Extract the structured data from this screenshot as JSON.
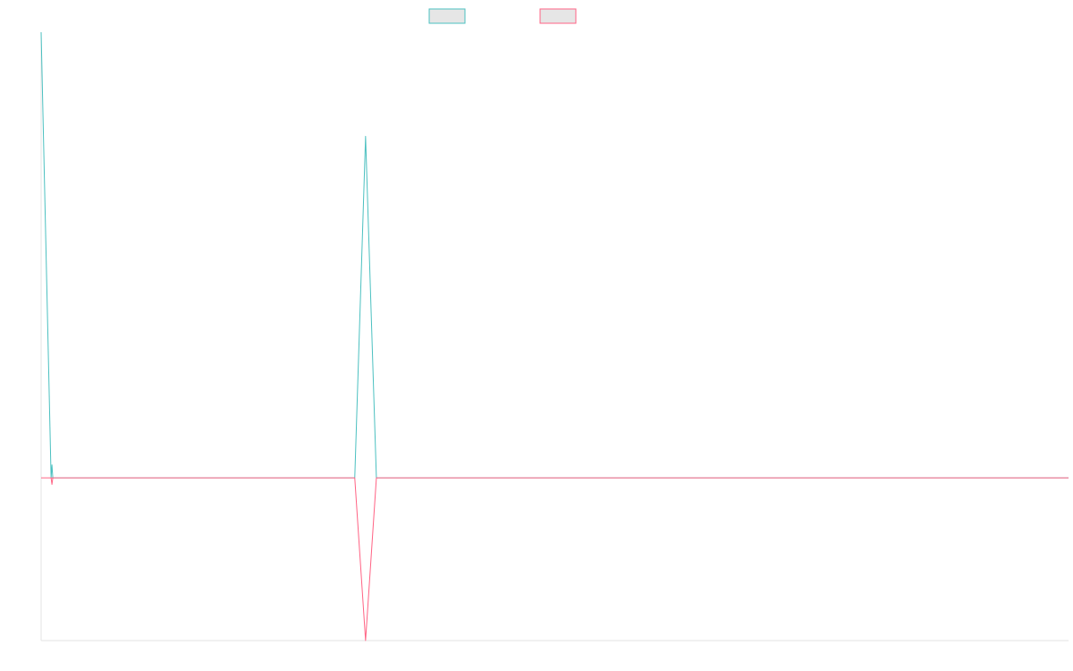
{
  "chart_data": {
    "type": "line",
    "title": "",
    "xlabel": "",
    "ylabel": "",
    "grid": false,
    "legend_position": "top-center",
    "xlim": [
      0,
      95
    ],
    "ylim": [
      -0.5,
      1.37
    ],
    "x": [
      0,
      1,
      2,
      3,
      4,
      5,
      6,
      7,
      8,
      9,
      10,
      11,
      12,
      13,
      14,
      15,
      16,
      17,
      18,
      19,
      20,
      21,
      22,
      23,
      24,
      25,
      26,
      27,
      28,
      29,
      30,
      31,
      32,
      33,
      34,
      35,
      36,
      37,
      38,
      39,
      40,
      41,
      42,
      43,
      44,
      45,
      46,
      47,
      48,
      49,
      50,
      51,
      52,
      53,
      54,
      55,
      56,
      57,
      58,
      59,
      60,
      61,
      62,
      63,
      64,
      65,
      66,
      67,
      68,
      69,
      70,
      71,
      72,
      73,
      74,
      75,
      76,
      77,
      78,
      79,
      80,
      81,
      82,
      83,
      84,
      85,
      86,
      87,
      88,
      89,
      90,
      91,
      92,
      93,
      94,
      95
    ],
    "series": [
      {
        "name": "",
        "color": "#4bc0c0",
        "values": [
          1.37,
          0,
          0,
          0,
          0,
          0,
          0,
          0,
          0,
          0,
          0,
          0,
          0,
          0,
          0,
          0,
          0,
          0,
          0,
          0,
          0,
          0,
          0,
          0,
          0,
          0,
          0,
          0,
          0,
          0,
          1.05,
          0,
          0,
          0,
          0,
          0,
          0,
          0,
          0,
          0,
          0,
          0,
          0,
          0,
          0,
          0,
          0,
          0,
          0,
          0,
          0,
          0,
          0,
          0,
          0,
          0,
          0,
          0,
          0,
          0,
          0,
          0,
          0,
          0,
          0,
          0,
          0,
          0,
          0,
          0,
          0,
          0,
          0,
          0,
          0,
          0,
          0,
          0,
          0,
          0,
          0,
          0,
          0,
          0,
          0,
          0,
          0,
          0,
          0,
          0,
          0,
          0,
          0,
          0,
          0,
          0
        ],
        "spikes": [
          [
            1,
            0.04
          ]
        ]
      },
      {
        "name": "",
        "color": "#ff6384",
        "values": [
          0,
          0,
          0,
          0,
          0,
          0,
          0,
          0,
          0,
          0,
          0,
          0,
          0,
          0,
          0,
          0,
          0,
          0,
          0,
          0,
          0,
          0,
          0,
          0,
          0,
          0,
          0,
          0,
          0,
          0,
          -0.5,
          0,
          0,
          0,
          0,
          0,
          0,
          0,
          0,
          0,
          0,
          0,
          0,
          0,
          0,
          0,
          0,
          0,
          0,
          0,
          0,
          0,
          0,
          0,
          0,
          0,
          0,
          0,
          0,
          0,
          0,
          0,
          0,
          0,
          0,
          0,
          0,
          0,
          0,
          0,
          0,
          0,
          0,
          0,
          0,
          0,
          0,
          0,
          0,
          0,
          0,
          0,
          0,
          0,
          0,
          0,
          0,
          0,
          0,
          0,
          0,
          0,
          0,
          0,
          0,
          0
        ],
        "spikes": [
          [
            1,
            -0.02
          ]
        ]
      }
    ]
  }
}
